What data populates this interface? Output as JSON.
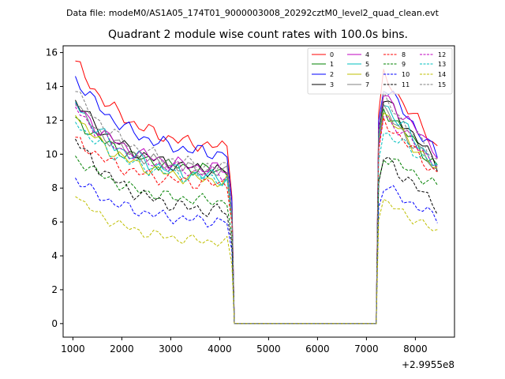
{
  "header": {
    "data_file_line": "Data file: modeM0/AS1A05_174T01_9000003008_20292cztM0_level2_quad_clean.evt"
  },
  "chart_data": {
    "type": "line",
    "title": "Quadrant 2 module wise count rates with 100.0s bins.",
    "xlabel": "",
    "ylabel": "",
    "x_offset_label": "+2.9955e8",
    "xlim": [
      800,
      8800
    ],
    "ylim": [
      -0.8,
      16.4
    ],
    "x_ticks": [
      1000,
      2000,
      3000,
      4000,
      5000,
      6000,
      7000,
      8000
    ],
    "y_ticks": [
      0,
      2,
      4,
      6,
      8,
      10,
      12,
      14,
      16
    ],
    "legend_position": "top-right",
    "gap": {
      "start": 4300,
      "end": 7200,
      "floor_value": 0.0
    },
    "x": [
      1050,
      1150,
      1250,
      1350,
      1450,
      1550,
      1650,
      1750,
      1850,
      1950,
      2050,
      2150,
      2250,
      2350,
      2450,
      2550,
      2650,
      2750,
      2850,
      2950,
      3050,
      3150,
      3250,
      3350,
      3450,
      3550,
      3650,
      3750,
      3850,
      3950,
      4050,
      4150,
      4250,
      4300,
      4400,
      4500,
      4600,
      4700,
      4800,
      4900,
      5000,
      5100,
      5200,
      5300,
      5400,
      5500,
      5600,
      5700,
      5800,
      5900,
      6000,
      6100,
      6200,
      6300,
      6400,
      6500,
      6600,
      6700,
      6800,
      6900,
      7000,
      7100,
      7200,
      7250,
      7350,
      7450,
      7550,
      7650,
      7750,
      7850,
      7950,
      8050,
      8150,
      8250,
      8350,
      8450
    ],
    "series": [
      {
        "name": "0",
        "color": "#ff0000",
        "dash": "solid",
        "start": 15.5,
        "plateau": 10.4,
        "recovery": 14.6,
        "end": 10.4,
        "wobble": 0.3,
        "phase": 0.3
      },
      {
        "name": "1",
        "color": "#008000",
        "dash": "solid",
        "start": 12.2,
        "plateau": 9.0,
        "recovery": 12.7,
        "end": 9.2,
        "wobble": 0.28,
        "phase": 1.1
      },
      {
        "name": "2",
        "color": "#0000ff",
        "dash": "solid",
        "start": 14.6,
        "plateau": 10.0,
        "recovery": 14.1,
        "end": 9.9,
        "wobble": 0.3,
        "phase": 2.0
      },
      {
        "name": "3",
        "color": "#000000",
        "dash": "solid",
        "start": 13.2,
        "plateau": 9.0,
        "recovery": 13.3,
        "end": 9.4,
        "wobble": 0.28,
        "phase": 2.7
      },
      {
        "name": "4",
        "color": "#bf00bf",
        "dash": "solid",
        "start": 13.0,
        "plateau": 9.1,
        "recovery": 13.5,
        "end": 10.1,
        "wobble": 0.28,
        "phase": 3.4
      },
      {
        "name": "5",
        "color": "#00bfbf",
        "dash": "solid",
        "start": 13.1,
        "plateau": 8.6,
        "recovery": 13.0,
        "end": 9.3,
        "wobble": 0.32,
        "phase": 4.2
      },
      {
        "name": "6",
        "color": "#bfbf00",
        "dash": "solid",
        "start": 12.3,
        "plateau": 8.4,
        "recovery": 12.4,
        "end": 9.0,
        "wobble": 0.28,
        "phase": 5.0
      },
      {
        "name": "7",
        "color": "#808080",
        "dash": "solid",
        "start": 12.9,
        "plateau": 8.9,
        "recovery": 12.6,
        "end": 9.0,
        "wobble": 0.28,
        "phase": 5.7
      },
      {
        "name": "8",
        "color": "#ff0000",
        "dash": "dashed",
        "start": 11.0,
        "plateau": 8.2,
        "recovery": 12.0,
        "end": 8.8,
        "wobble": 0.28,
        "phase": 0.8
      },
      {
        "name": "9",
        "color": "#008000",
        "dash": "dashed",
        "start": 9.9,
        "plateau": 7.2,
        "recovery": 9.9,
        "end": 8.1,
        "wobble": 0.25,
        "phase": 1.6
      },
      {
        "name": "10",
        "color": "#0000ff",
        "dash": "dashed",
        "start": 8.6,
        "plateau": 6.0,
        "recovery": 8.1,
        "end": 6.2,
        "wobble": 0.25,
        "phase": 2.4
      },
      {
        "name": "11",
        "color": "#000000",
        "dash": "dashed",
        "start": 10.9,
        "plateau": 6.6,
        "recovery": 9.8,
        "end": 6.9,
        "wobble": 0.3,
        "phase": 3.1
      },
      {
        "name": "12",
        "color": "#bf00bf",
        "dash": "dashed",
        "start": 12.8,
        "plateau": 8.8,
        "recovery": 12.3,
        "end": 9.4,
        "wobble": 0.28,
        "phase": 3.9
      },
      {
        "name": "13",
        "color": "#00bfbf",
        "dash": "dashed",
        "start": 11.9,
        "plateau": 8.5,
        "recovery": 11.3,
        "end": 9.3,
        "wobble": 0.28,
        "phase": 4.6
      },
      {
        "name": "14",
        "color": "#bfbf00",
        "dash": "dashed",
        "start": 7.5,
        "plateau": 4.8,
        "recovery": 7.2,
        "end": 5.4,
        "wobble": 0.22,
        "phase": 5.3
      },
      {
        "name": "15",
        "color": "#808080",
        "dash": "dashed",
        "start": 13.7,
        "plateau": 9.2,
        "recovery": 13.3,
        "end": 9.6,
        "wobble": 0.28,
        "phase": 6.0
      }
    ]
  }
}
